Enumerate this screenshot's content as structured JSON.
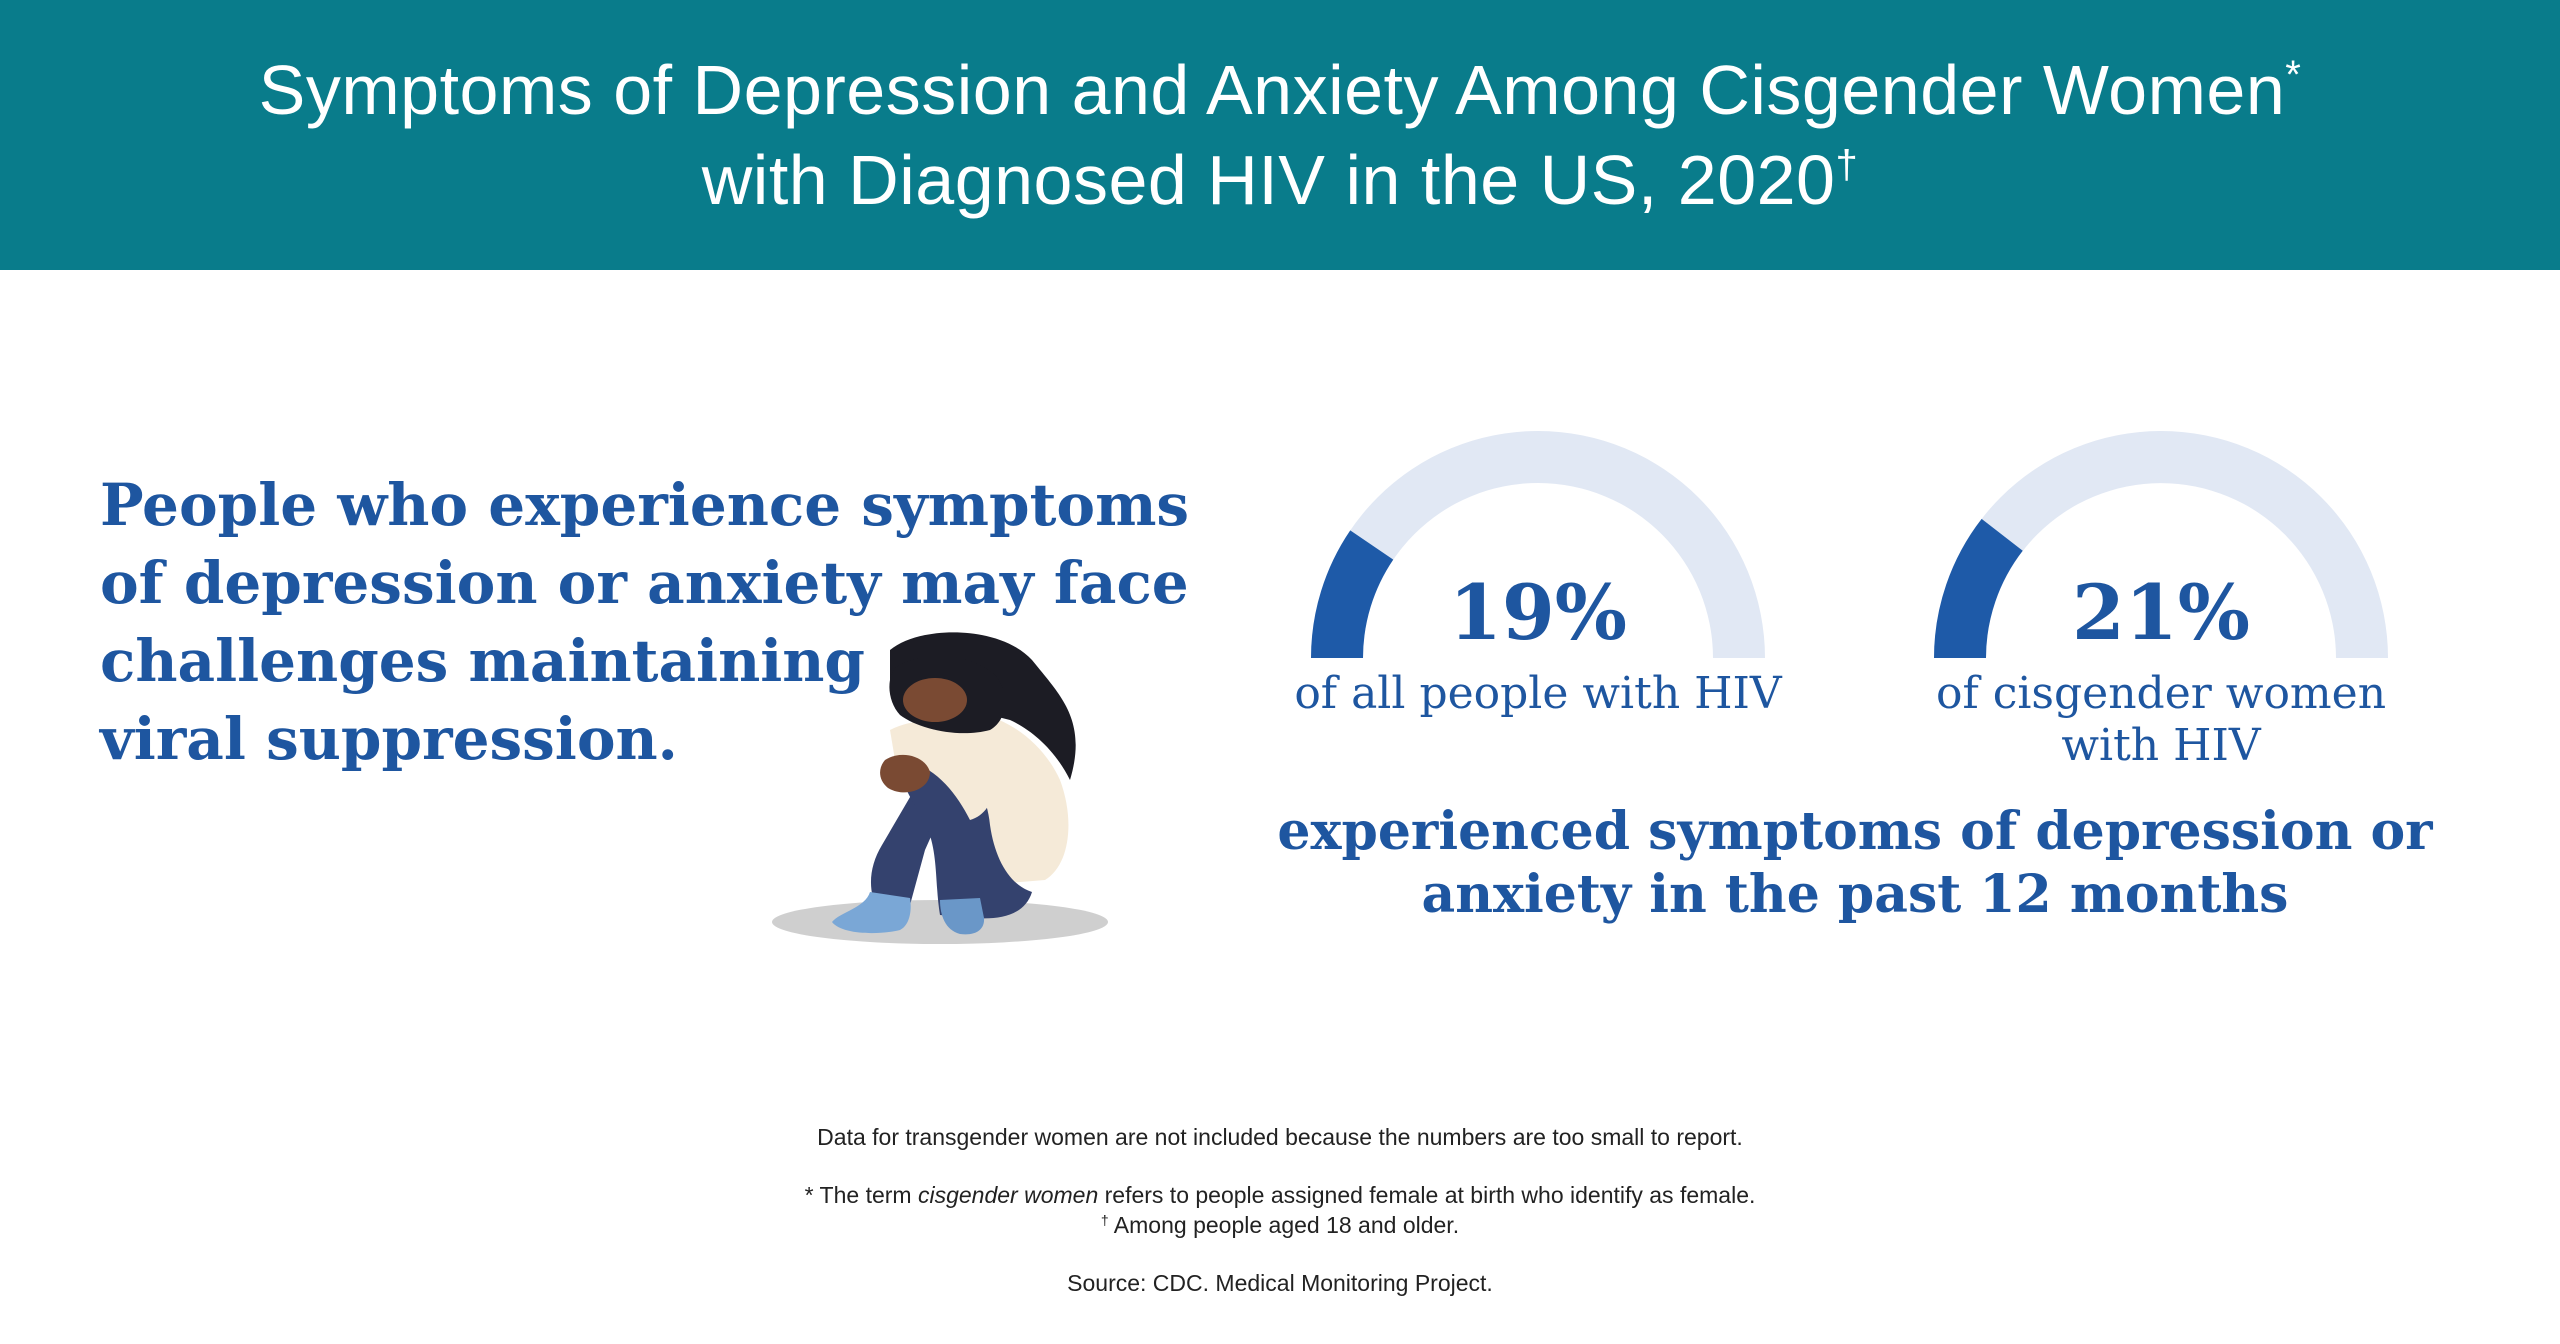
{
  "header": {
    "title_line1": "Symptoms of Depression and Anxiety Among Cisgender Women",
    "title_line1_mark": "*",
    "title_line2": "with Diagnosed HIV in the US, 2020",
    "title_line2_mark": "†"
  },
  "headline": {
    "lines": [
      "People who experience symptoms",
      "of depression or anxiety may face",
      "challenges maintaining",
      "viral suppression."
    ]
  },
  "chart_data": {
    "type": "gauge",
    "unit": "%",
    "max": 100,
    "series": [
      {
        "value": 19,
        "display": "19%",
        "label_lines": [
          "of all people with HIV"
        ]
      },
      {
        "value": 21,
        "display": "21%",
        "label_lines": [
          "of cisgender women",
          "with HIV"
        ]
      }
    ],
    "caption_lines": [
      "experienced symptoms of depression or",
      "anxiety in the past 12 months"
    ],
    "colors": {
      "fill": "#1e5aa8",
      "track": "#e1e8f4"
    }
  },
  "footnotes": {
    "note": "Data for transgender women are not included because the numbers are too small to report.",
    "star_prefix": "* The term ",
    "star_term": "cisgender women",
    "star_suffix": " refers to people assigned female at birth who identify as female.",
    "dagger_mark": "†",
    "dagger_text": " Among people aged 18 and older.",
    "source": "Source: CDC. Medical Monitoring Project."
  },
  "figure": {
    "icon": "sitting-person-hugging-knees-icon"
  }
}
